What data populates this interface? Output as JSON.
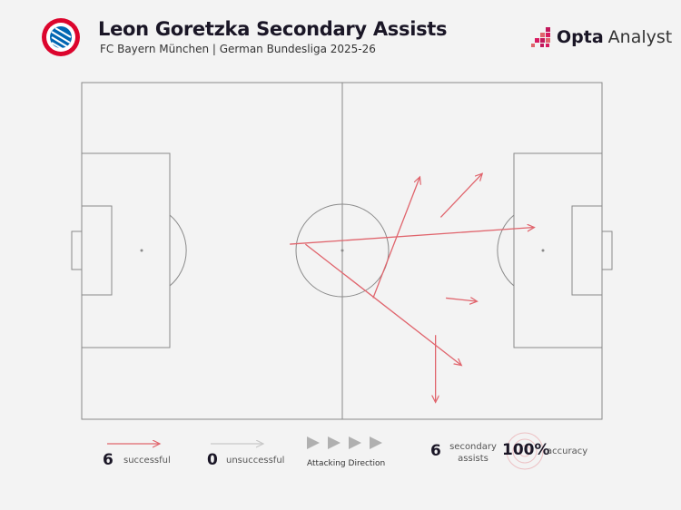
{
  "header": {
    "title": "Leon Goretzka Secondary Assists",
    "subtitle": "FC Bayern München | German Bundesliga 2025-26",
    "club_logo_text": "FC BAYERN MÜNCHEN",
    "brand_bold": "Opta",
    "brand_light": "Analyst"
  },
  "colors": {
    "successful": "#e0646c",
    "unsuccessful": "#c8c8c8",
    "pitch_line": "#8a8a8a",
    "accent": "#e0646c"
  },
  "chart_data": {
    "type": "pass-map",
    "pitch": "full pitch, attacking left to right",
    "passes": [
      {
        "start": [
          56,
          36
        ],
        "end": [
          65,
          72
        ],
        "outcome": "successful"
      },
      {
        "start": [
          69,
          60
        ],
        "end": [
          77,
          73
        ],
        "outcome": "successful"
      },
      {
        "start": [
          40,
          52
        ],
        "end": [
          87,
          57
        ],
        "outcome": "successful"
      },
      {
        "start": [
          43,
          52
        ],
        "end": [
          73,
          16
        ],
        "outcome": "successful"
      },
      {
        "start": [
          70,
          36
        ],
        "end": [
          76,
          35
        ],
        "outcome": "successful"
      },
      {
        "start": [
          68,
          25
        ],
        "end": [
          68,
          5
        ],
        "outcome": "successful"
      }
    ]
  },
  "legend": {
    "successful_count": "6",
    "successful_label": "successful",
    "unsuccessful_count": "0",
    "unsuccessful_label": "unsuccessful",
    "direction_label": "Attacking Direction",
    "secondary_count": "6",
    "secondary_label_1": "secondary",
    "secondary_label_2": "assists",
    "accuracy_value": "100%",
    "accuracy_label": "accuracy"
  }
}
